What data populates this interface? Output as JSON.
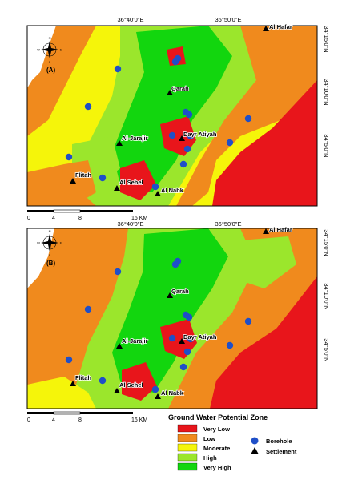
{
  "colors": {
    "very_low": "#e8151b",
    "low": "#f08a1d",
    "moderate": "#f5f50a",
    "high": "#9be62c",
    "very_high": "#12d60e",
    "borehole": "#1f4fc8",
    "settlement": "#000000",
    "frame": "#000000"
  },
  "coordinates": {
    "top_left": "36°40'0\"E",
    "top_right": "36°50'0\"E",
    "right_1": "34°15'0\"N",
    "right_2": "34°10'0\"N",
    "right_3": "34°5'0\"N"
  },
  "map_a": {
    "label": "(A)",
    "settlements": [
      {
        "name": "Al Hafar"
      },
      {
        "name": "Qarah"
      },
      {
        "name": "Dayr Atiyah"
      },
      {
        "name": "Al-Jarajir"
      },
      {
        "name": "Flitah"
      },
      {
        "name": "Al Sehel"
      },
      {
        "name": "Al Nabk"
      }
    ]
  },
  "map_b": {
    "label": "(B)",
    "settlements": [
      {
        "name": "Al Hafar"
      },
      {
        "name": "Qarah"
      },
      {
        "name": "Dayr Atiyah"
      },
      {
        "name": "Al-Jarajir"
      },
      {
        "name": "Flitah"
      },
      {
        "name": "Al Sehel"
      },
      {
        "name": "Al Nabk"
      }
    ]
  },
  "compass": {
    "n": "N",
    "s": "S",
    "e": "E",
    "w": "W"
  },
  "scale_bar": {
    "ticks": [
      "0",
      "4",
      "8",
      "16 KM"
    ]
  },
  "legend": {
    "title": "Ground Water Potential Zone",
    "zones": [
      {
        "label": "Very Low"
      },
      {
        "label": "Low"
      },
      {
        "label": "Moderate"
      },
      {
        "label": "High"
      },
      {
        "label": "Very High"
      }
    ],
    "borehole_label": "Borehole",
    "settlement_label": "Settlement"
  }
}
